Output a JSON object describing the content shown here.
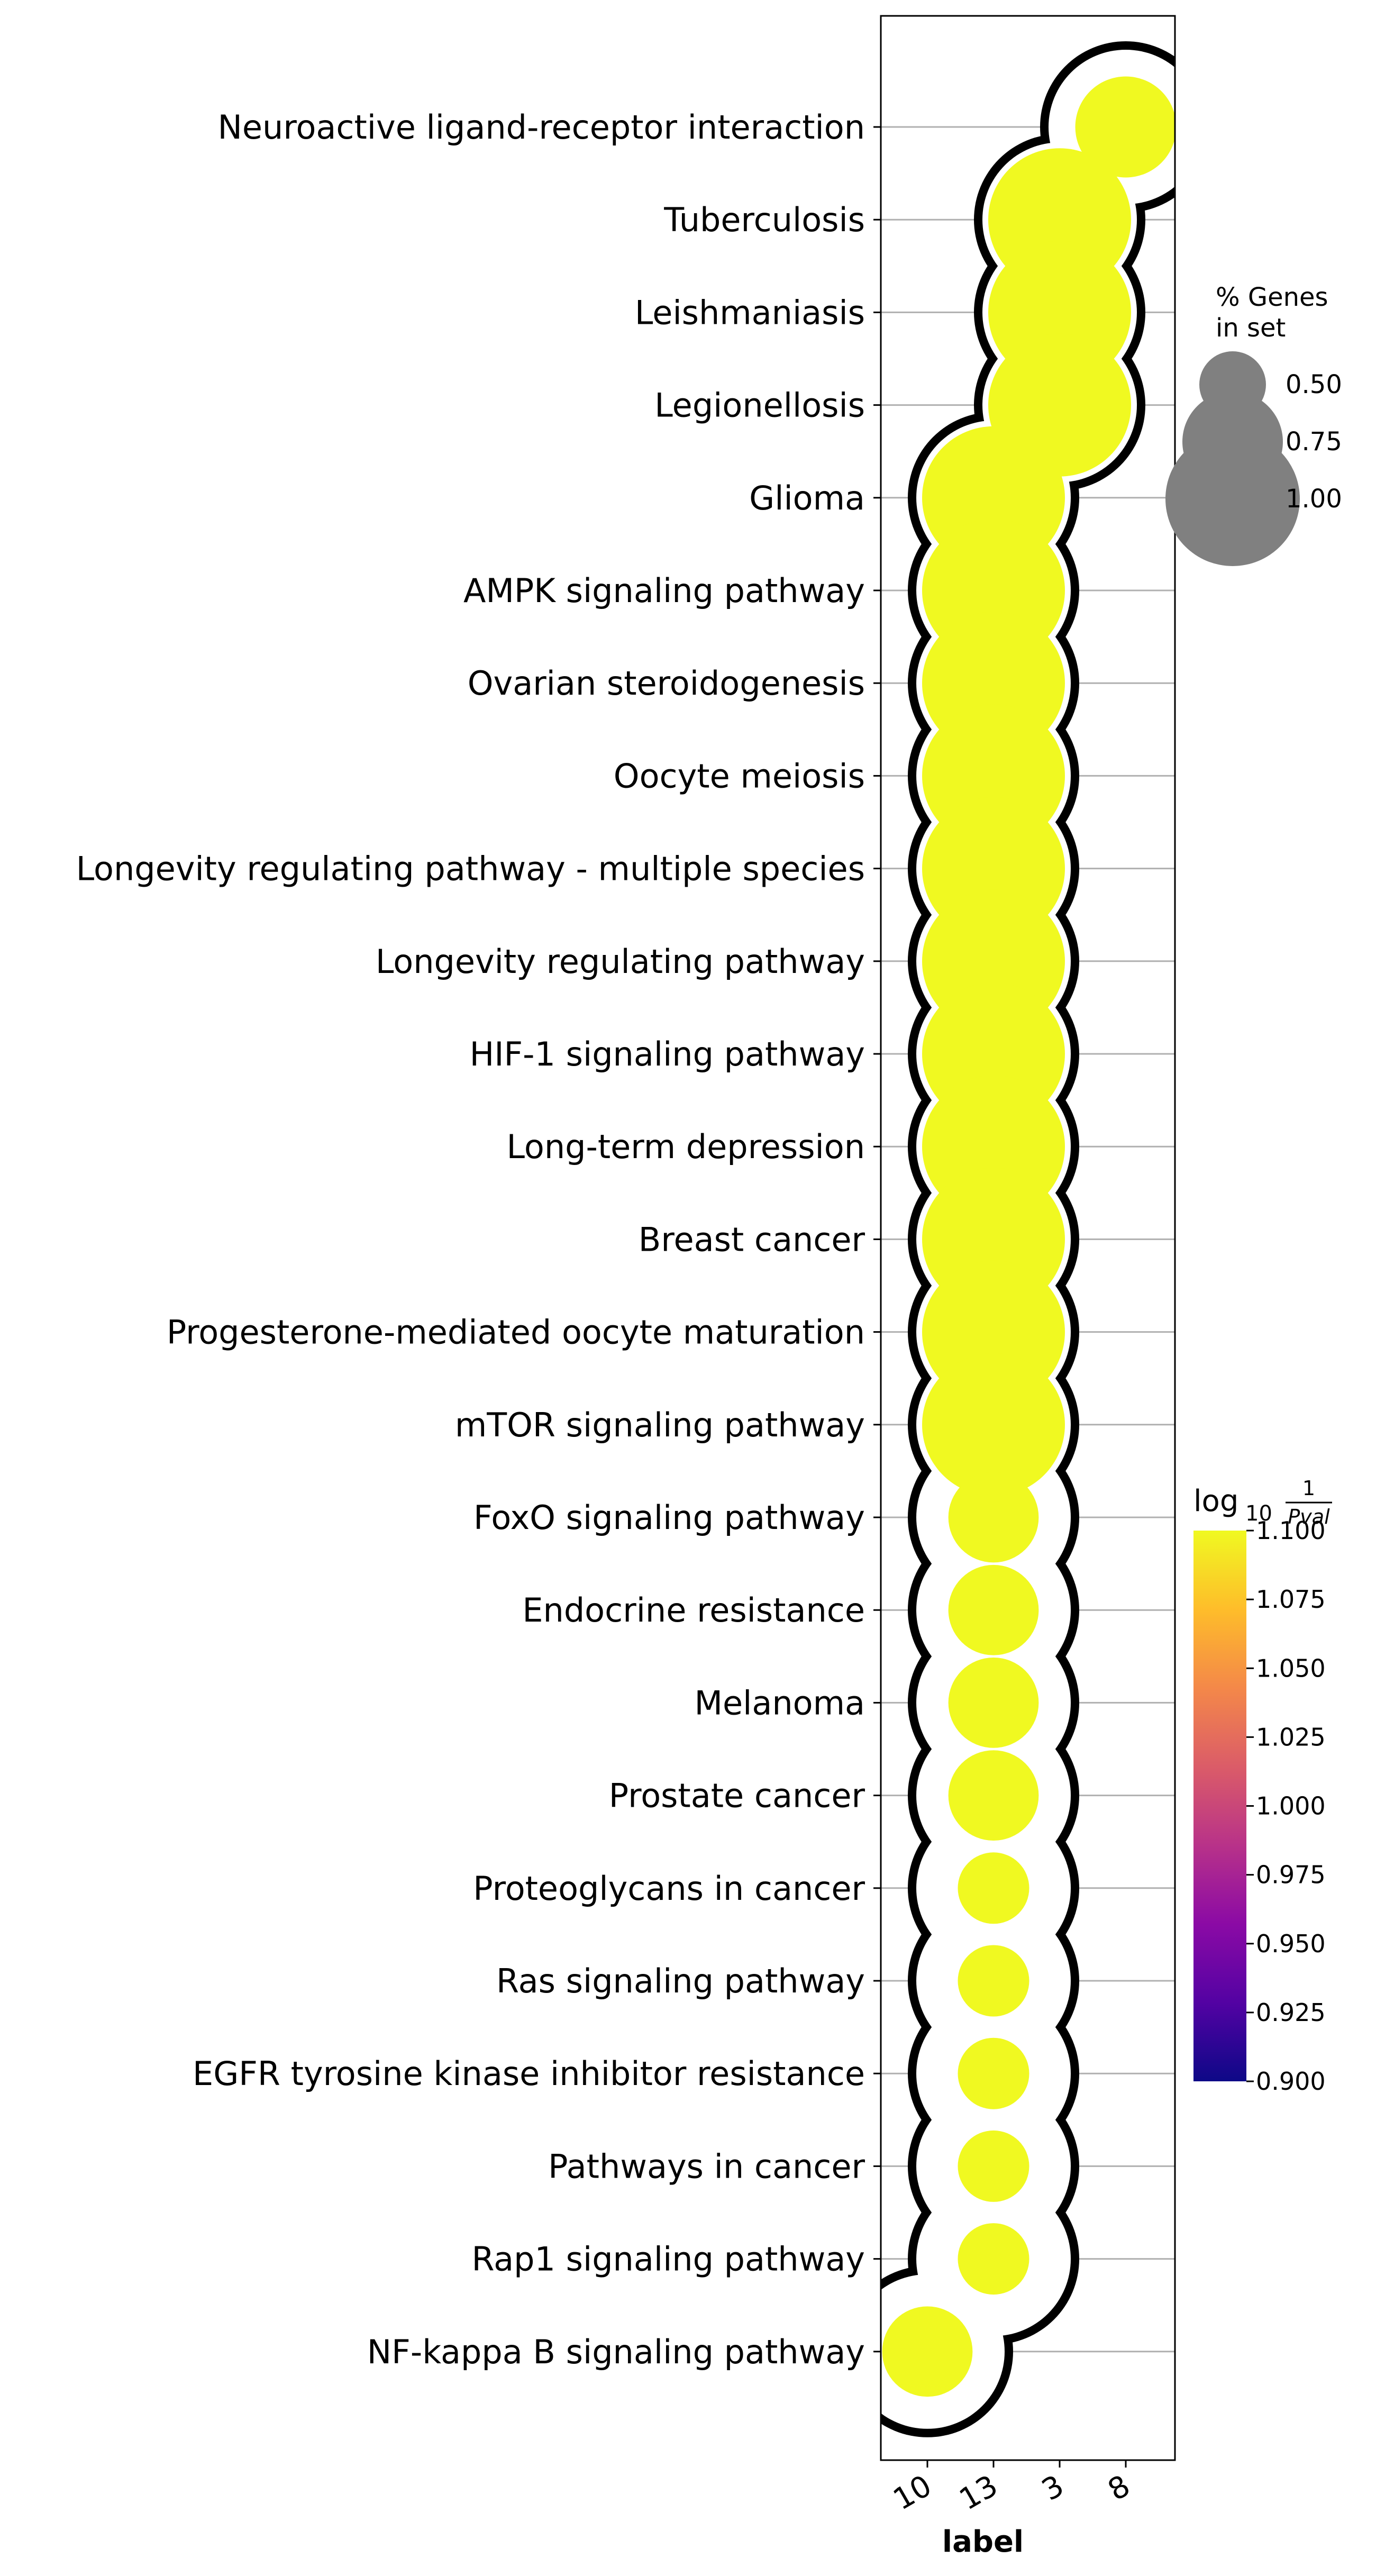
{
  "chart_data": {
    "type": "scatter",
    "xlabel": "label",
    "x_categories": [
      "10",
      "13",
      "3",
      "8"
    ],
    "rows": [
      "Neuroactive ligand-receptor interaction",
      "Tuberculosis",
      "Leishmaniasis",
      "Legionellosis",
      "Glioma",
      "AMPK signaling pathway",
      "Ovarian steroidogenesis",
      "Oocyte meiosis",
      "Longevity regulating pathway - multiple species",
      "Longevity regulating pathway",
      "HIF-1 signaling pathway",
      "Long-term depression",
      "Breast cancer",
      "Progesterone-mediated oocyte maturation",
      "mTOR signaling pathway",
      "FoxO signaling pathway",
      "Endocrine resistance",
      "Melanoma",
      "Prostate cancer",
      "Proteoglycans in cancer",
      "Ras signaling pathway",
      "EGFR tyrosine kinase inhibitor resistance",
      "Pathways in cancer",
      "Rap1 signaling pathway",
      "NF-kappa B signaling pathway"
    ],
    "points": [
      {
        "row": "Neuroactive ligand-receptor interaction",
        "label": "8",
        "pct_genes": 0.5,
        "log10_inv_pval": 1.1
      },
      {
        "row": "Tuberculosis",
        "label": "3",
        "pct_genes": 1.0,
        "log10_inv_pval": 1.1
      },
      {
        "row": "Leishmaniasis",
        "label": "3",
        "pct_genes": 1.0,
        "log10_inv_pval": 1.1
      },
      {
        "row": "Legionellosis",
        "label": "3",
        "pct_genes": 1.0,
        "log10_inv_pval": 1.1
      },
      {
        "row": "Glioma",
        "label": "13",
        "pct_genes": 1.0,
        "log10_inv_pval": 1.1
      },
      {
        "row": "AMPK signaling pathway",
        "label": "13",
        "pct_genes": 1.0,
        "log10_inv_pval": 1.1
      },
      {
        "row": "Ovarian steroidogenesis",
        "label": "13",
        "pct_genes": 1.0,
        "log10_inv_pval": 1.1
      },
      {
        "row": "Oocyte meiosis",
        "label": "13",
        "pct_genes": 1.0,
        "log10_inv_pval": 1.1
      },
      {
        "row": "Longevity regulating pathway - multiple species",
        "label": "13",
        "pct_genes": 1.0,
        "log10_inv_pval": 1.1
      },
      {
        "row": "Longevity regulating pathway",
        "label": "13",
        "pct_genes": 1.0,
        "log10_inv_pval": 1.1
      },
      {
        "row": "HIF-1 signaling pathway",
        "label": "13",
        "pct_genes": 1.0,
        "log10_inv_pval": 1.1
      },
      {
        "row": "Long-term depression",
        "label": "13",
        "pct_genes": 1.0,
        "log10_inv_pval": 1.1
      },
      {
        "row": "Breast cancer",
        "label": "13",
        "pct_genes": 1.0,
        "log10_inv_pval": 1.1
      },
      {
        "row": "Progesterone-mediated oocyte maturation",
        "label": "13",
        "pct_genes": 1.0,
        "log10_inv_pval": 1.1
      },
      {
        "row": "mTOR signaling pathway",
        "label": "13",
        "pct_genes": 1.0,
        "log10_inv_pval": 1.1
      },
      {
        "row": "FoxO signaling pathway",
        "label": "13",
        "pct_genes": 0.4,
        "log10_inv_pval": 1.1
      },
      {
        "row": "Endocrine resistance",
        "label": "13",
        "pct_genes": 0.4,
        "log10_inv_pval": 1.1
      },
      {
        "row": "Melanoma",
        "label": "13",
        "pct_genes": 0.4,
        "log10_inv_pval": 1.1
      },
      {
        "row": "Prostate cancer",
        "label": "13",
        "pct_genes": 0.4,
        "log10_inv_pval": 1.1
      },
      {
        "row": "Proteoglycans in cancer",
        "label": "13",
        "pct_genes": 0.25,
        "log10_inv_pval": 1.1
      },
      {
        "row": "Ras signaling pathway",
        "label": "13",
        "pct_genes": 0.25,
        "log10_inv_pval": 1.1
      },
      {
        "row": "EGFR tyrosine kinase inhibitor resistance",
        "label": "13",
        "pct_genes": 0.25,
        "log10_inv_pval": 1.1
      },
      {
        "row": "Pathways in cancer",
        "label": "13",
        "pct_genes": 0.25,
        "log10_inv_pval": 1.1
      },
      {
        "row": "Rap1 signaling pathway",
        "label": "13",
        "pct_genes": 0.25,
        "log10_inv_pval": 1.1
      },
      {
        "row": "NF-kappa B signaling pathway",
        "label": "10",
        "pct_genes": 0.4,
        "log10_inv_pval": 1.1
      }
    ],
    "size_legend": {
      "title_line1": "% Genes",
      "title_line2": "in set",
      "entries": [
        {
          "value": 0.5,
          "text": "0.50"
        },
        {
          "value": 0.75,
          "text": "0.75"
        },
        {
          "value": 1.0,
          "text": "1.00"
        }
      ],
      "color": "#808080",
      "placement": "right"
    },
    "colorbar": {
      "title_log": "log",
      "title_sub": "10",
      "title_num": "1",
      "title_den": "Pval",
      "colormap": "plasma",
      "range": [
        0.9,
        1.1
      ],
      "ticks": [
        "0.900",
        "0.925",
        "0.950",
        "0.975",
        "1.000",
        "1.025",
        "1.050",
        "1.075",
        "1.100"
      ],
      "stops": [
        "#0d0887",
        "#5302a3",
        "#8b0aa5",
        "#b83289",
        "#db5c68",
        "#f48849",
        "#febd2a",
        "#f0f921"
      ]
    },
    "point_color": "#f0f921",
    "halo_color": "#000000",
    "grid": "horizontal"
  }
}
